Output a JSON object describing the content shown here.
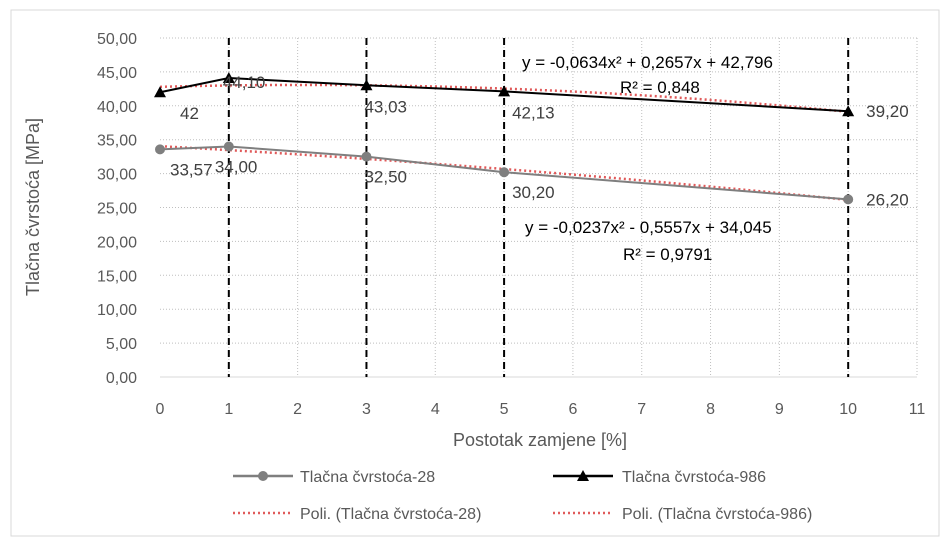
{
  "chart_data": {
    "type": "line",
    "title": "",
    "xlabel": "Postotak zamjene [%]",
    "ylabel": "Tlačna čvrstoća [MPa]",
    "xlim": [
      0,
      11
    ],
    "ylim": [
      0,
      50
    ],
    "x_ticks": [
      "0",
      "1",
      "2",
      "3",
      "4",
      "5",
      "6",
      "7",
      "8",
      "9",
      "10",
      "11"
    ],
    "y_ticks": [
      "0,00",
      "5,00",
      "10,00",
      "15,00",
      "20,00",
      "25,00",
      "30,00",
      "35,00",
      "40,00",
      "45,00",
      "50,00"
    ],
    "grid": "dotted",
    "vertical_markers": [
      1,
      3,
      5,
      10
    ],
    "legend_position": "bottom",
    "series": [
      {
        "name": "Tlačna čvrstoća-28",
        "color": "#7f7f7f",
        "marker": "circle",
        "x": [
          0,
          1,
          3,
          5,
          10
        ],
        "y": [
          33.57,
          34.0,
          32.5,
          30.2,
          26.2
        ],
        "labels": [
          "33,57",
          "34,00",
          "32,50",
          "30,20",
          "26,20"
        ]
      },
      {
        "name": "Tlačna čvrstoća-986",
        "color": "#000000",
        "marker": "triangle",
        "x": [
          0,
          1,
          3,
          5,
          10
        ],
        "y": [
          42.0,
          44.1,
          43.03,
          42.13,
          39.2
        ],
        "labels": [
          "42",
          "44,10",
          "43,03",
          "42,13",
          "39,20"
        ]
      }
    ],
    "trendlines": [
      {
        "name": "Poli. (Tlačna čvrstoća-28)",
        "color": "#e05a5a",
        "style": "dotted",
        "coeffs": [
          -0.0237,
          -0.5557,
          34.045
        ],
        "equation": "y = -0,0237x² - 0,5557x + 34,045",
        "r2": "R² = 0,9791"
      },
      {
        "name": "Poli. (Tlačna čvrstoća-986)",
        "color": "#e05a5a",
        "style": "dotted",
        "coeffs": [
          -0.0634,
          0.2657,
          42.796
        ],
        "equation": "y = -0,0634x² + 0,2657x + 42,796",
        "r2": "R² = 0,848"
      }
    ]
  }
}
